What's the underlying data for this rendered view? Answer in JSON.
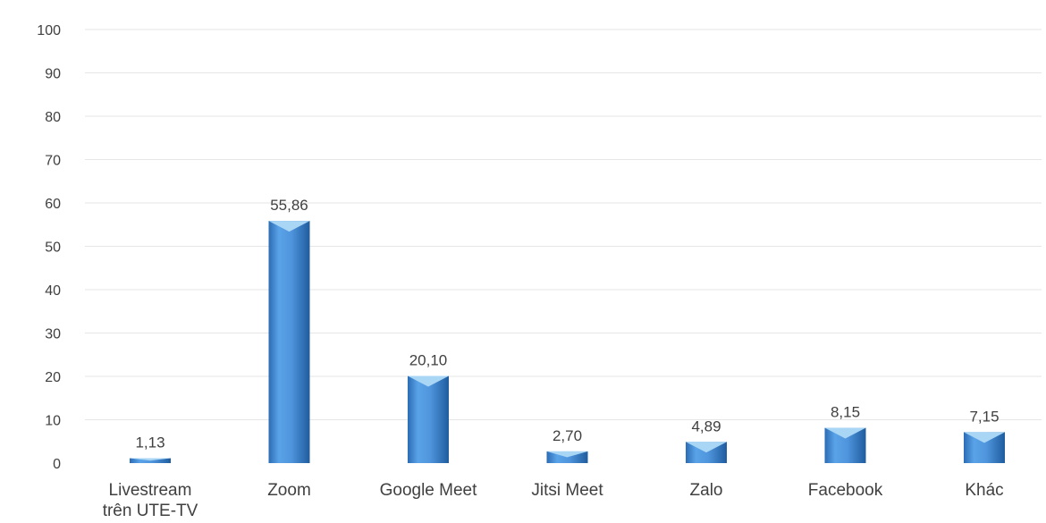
{
  "chart_data": {
    "type": "bar",
    "categories": [
      [
        "Livestream",
        "trên UTE-TV"
      ],
      [
        "Zoom"
      ],
      [
        "Google Meet"
      ],
      [
        "Jitsi Meet"
      ],
      [
        "Zalo"
      ],
      [
        "Facebook"
      ],
      [
        "Khác"
      ]
    ],
    "values": [
      1.13,
      55.86,
      20.1,
      2.7,
      4.89,
      8.15,
      7.15
    ],
    "data_labels": [
      "1,13",
      "55,86",
      "20,10",
      "2,70",
      "4,89",
      "8,15",
      "7,15"
    ],
    "ylim": [
      0,
      100
    ],
    "yticks": [
      0,
      10,
      20,
      30,
      40,
      50,
      60,
      70,
      80,
      90,
      100
    ],
    "grid": true,
    "legend": "none",
    "colors": {
      "bar": "#4f95dd",
      "bar_light": "#a9d6f5",
      "bar_dark": "#1f5c9e"
    }
  }
}
